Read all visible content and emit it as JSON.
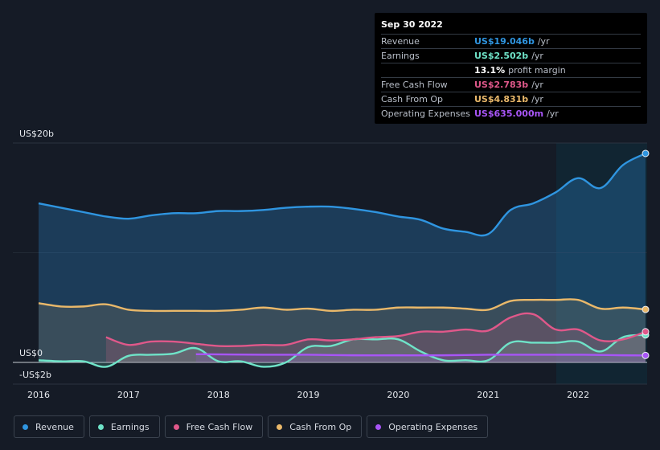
{
  "tooltip": {
    "date": "Sep 30 2022",
    "rows": [
      {
        "label": "Revenue",
        "value": "US$19.046b",
        "unit": "/yr",
        "color": "#2f95e0"
      },
      {
        "label": "Earnings",
        "value": "US$2.502b",
        "unit": "/yr",
        "color": "#6fe3c8"
      },
      {
        "label": "",
        "value": "13.1%",
        "unit": "profit margin",
        "color": "#ffffff"
      },
      {
        "label": "Free Cash Flow",
        "value": "US$2.783b",
        "unit": "/yr",
        "color": "#e0588a"
      },
      {
        "label": "Cash From Op",
        "value": "US$4.831b",
        "unit": "/yr",
        "color": "#e9b86a"
      },
      {
        "label": "Operating Expenses",
        "value": "US$635.000m",
        "unit": "/yr",
        "color": "#a855f7"
      }
    ]
  },
  "axis": {
    "y_top_label": "US$20b",
    "y_zero_label": "US$0",
    "y_bottom_label": "-US$2b"
  },
  "legend": [
    {
      "label": "Revenue",
      "color": "#2f95e0"
    },
    {
      "label": "Earnings",
      "color": "#6fe3c8"
    },
    {
      "label": "Free Cash Flow",
      "color": "#e0588a"
    },
    {
      "label": "Cash From Op",
      "color": "#e9b86a"
    },
    {
      "label": "Operating Expenses",
      "color": "#a855f7"
    }
  ],
  "chart_data": {
    "type": "area",
    "x_ticks": [
      "2016",
      "2017",
      "2018",
      "2019",
      "2020",
      "2021",
      "2022"
    ],
    "ylim": [
      -2,
      20
    ],
    "y_ticks": [
      20,
      0,
      -2
    ],
    "grid": true,
    "legend_position": "bottom",
    "highlight_from": 2021.75,
    "series": [
      {
        "name": "Revenue",
        "color": "#2f95e0",
        "x": [
          2016.0,
          2016.5,
          2016.75,
          2017.0,
          2017.25,
          2017.5,
          2017.75,
          2018.0,
          2018.25,
          2018.5,
          2018.75,
          2019.0,
          2019.25,
          2019.5,
          2019.75,
          2020.0,
          2020.25,
          2020.5,
          2020.75,
          2021.0,
          2021.25,
          2021.5,
          2021.75,
          2022.0,
          2022.25,
          2022.5,
          2022.75
        ],
        "y": [
          14.5,
          13.7,
          13.3,
          13.1,
          13.4,
          13.6,
          13.6,
          13.8,
          13.8,
          13.9,
          14.1,
          14.2,
          14.2,
          14.0,
          13.7,
          13.3,
          13.0,
          12.2,
          11.9,
          11.7,
          13.9,
          14.5,
          15.5,
          16.8,
          15.9,
          18.0,
          19.05
        ]
      },
      {
        "name": "Earnings",
        "color": "#6fe3c8",
        "x": [
          2016.0,
          2016.25,
          2016.5,
          2016.75,
          2017.0,
          2017.25,
          2017.5,
          2017.75,
          2018.0,
          2018.25,
          2018.5,
          2018.75,
          2019.0,
          2019.25,
          2019.5,
          2019.75,
          2020.0,
          2020.25,
          2020.5,
          2020.75,
          2021.0,
          2021.25,
          2021.5,
          2021.75,
          2022.0,
          2022.25,
          2022.5,
          2022.75
        ],
        "y": [
          0.2,
          0.1,
          0.1,
          -0.4,
          0.6,
          0.7,
          0.8,
          1.3,
          0.1,
          0.1,
          -0.4,
          0.0,
          1.4,
          1.5,
          2.1,
          2.1,
          2.1,
          1.0,
          0.2,
          0.2,
          0.2,
          1.8,
          1.8,
          1.8,
          1.9,
          1.0,
          2.3,
          2.5
        ]
      },
      {
        "name": "Free Cash Flow",
        "color": "#e0588a",
        "x": [
          2016.75,
          2017.0,
          2017.25,
          2017.5,
          2017.75,
          2018.0,
          2018.25,
          2018.5,
          2018.75,
          2019.0,
          2019.25,
          2019.5,
          2019.75,
          2020.0,
          2020.25,
          2020.5,
          2020.75,
          2021.0,
          2021.25,
          2021.5,
          2021.75,
          2022.0,
          2022.25,
          2022.5,
          2022.75
        ],
        "y": [
          2.3,
          1.6,
          1.9,
          1.9,
          1.7,
          1.5,
          1.5,
          1.6,
          1.6,
          2.1,
          2.0,
          2.1,
          2.3,
          2.4,
          2.8,
          2.8,
          3.0,
          2.9,
          4.1,
          4.4,
          3.0,
          3.0,
          2.0,
          2.1,
          2.8
        ]
      },
      {
        "name": "Cash From Op",
        "color": "#e9b86a",
        "x": [
          2016.0,
          2016.25,
          2016.5,
          2016.75,
          2017.0,
          2017.25,
          2017.5,
          2017.75,
          2018.0,
          2018.25,
          2018.5,
          2018.75,
          2019.0,
          2019.25,
          2019.5,
          2019.75,
          2020.0,
          2020.25,
          2020.5,
          2020.75,
          2021.0,
          2021.25,
          2021.5,
          2021.75,
          2022.0,
          2022.25,
          2022.5,
          2022.75
        ],
        "y": [
          5.4,
          5.1,
          5.1,
          5.3,
          4.8,
          4.7,
          4.7,
          4.7,
          4.7,
          4.8,
          5.0,
          4.8,
          4.9,
          4.7,
          4.8,
          4.8,
          5.0,
          5.0,
          5.0,
          4.9,
          4.8,
          5.6,
          5.7,
          5.7,
          5.7,
          4.9,
          5.0,
          4.83
        ]
      },
      {
        "name": "Operating Expenses",
        "color": "#a855f7",
        "x": [
          2017.75,
          2018.5,
          2019.0,
          2019.5,
          2020.0,
          2020.5,
          2021.0,
          2021.5,
          2022.0,
          2022.5,
          2022.75
        ],
        "y": [
          0.75,
          0.7,
          0.7,
          0.65,
          0.65,
          0.65,
          0.7,
          0.7,
          0.7,
          0.65,
          0.635
        ]
      }
    ]
  }
}
